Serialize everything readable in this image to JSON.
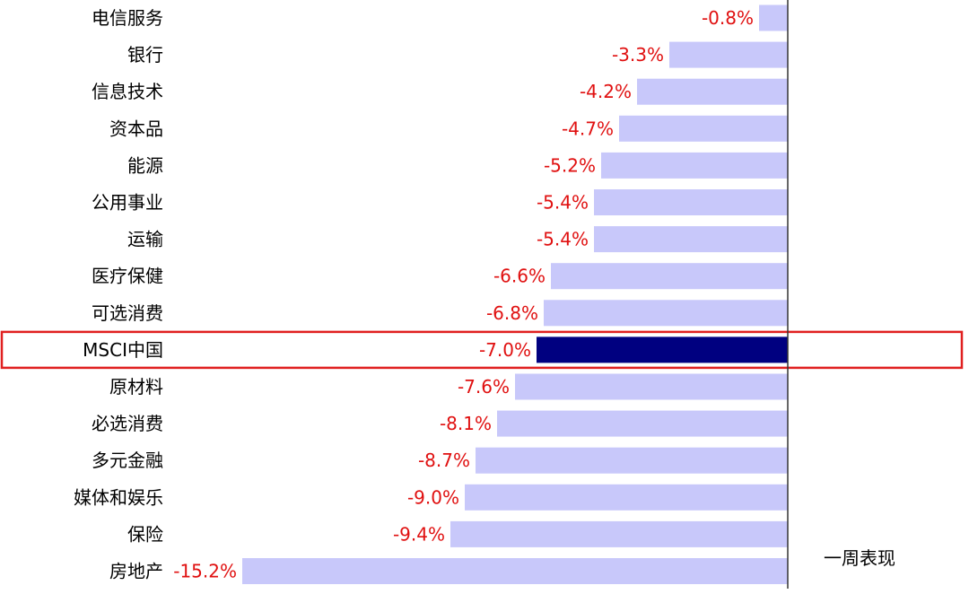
{
  "chart_data": {
    "type": "bar",
    "orientation": "horizontal",
    "categories": [
      "电信服务",
      "银行",
      "信息技术",
      "资本品",
      "能源",
      "公用事业",
      "运输",
      "医疗保健",
      "可选消费",
      "MSCI中国",
      "原材料",
      "必选消费",
      "多元金融",
      "媒体和娱乐",
      "保险",
      "房地产"
    ],
    "values": [
      -0.8,
      -3.3,
      -4.2,
      -4.7,
      -5.2,
      -5.4,
      -5.4,
      -6.6,
      -6.8,
      -7.0,
      -7.6,
      -8.1,
      -8.7,
      -9.0,
      -9.4,
      -15.2
    ],
    "value_labels": [
      "-0.8%",
      "-3.3%",
      "-4.2%",
      "-4.7%",
      "-5.2%",
      "-5.4%",
      "-5.4%",
      "-6.6%",
      "-6.8%",
      "-7.0%",
      "-7.6%",
      "-8.1%",
      "-8.7%",
      "-9.0%",
      "-9.4%",
      "-15.2%"
    ],
    "highlight_category": "MSCI中国",
    "series": [
      {
        "name": "一周表现",
        "values": [
          -0.8,
          -3.3,
          -4.2,
          -4.7,
          -5.2,
          -5.4,
          -5.4,
          -6.6,
          -6.8,
          -7.0,
          -7.6,
          -8.1,
          -8.7,
          -9.0,
          -9.4,
          -15.2
        ]
      }
    ],
    "legend": {
      "label": "一周表现",
      "position": "bottom-right"
    },
    "xlim": [
      -16,
      0
    ],
    "unit": "%",
    "grid": false,
    "colors": {
      "bar": "#c8c8fa",
      "highlight_bar": "#000080",
      "value_label": "#e01010",
      "highlight_box": "#e02020",
      "axis": "#333333"
    }
  }
}
